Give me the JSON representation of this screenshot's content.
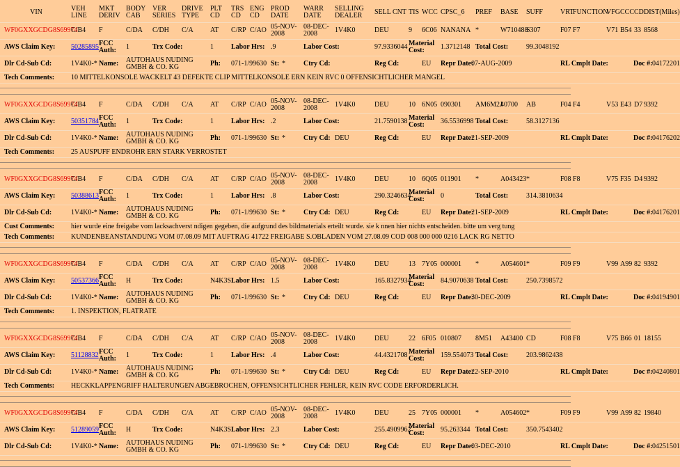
{
  "header": [
    "VIN",
    "VEH LINE",
    "MKT DERIV",
    "BODY CAB",
    "VER SERIES",
    "DRIVE TYPE",
    "PLT CD",
    "TRS CD",
    "ENG CD",
    "PROD DATE",
    "WARR DATE",
    "SELLING DEALER",
    "SELL CNT",
    "TIS",
    "WCC",
    "CPSC_6",
    "PREF",
    "BASE",
    "SUFF",
    "VRT",
    "FUNCTION",
    "VFG",
    "CCC",
    "CD",
    "DIST(Miles)"
  ],
  "labels": {
    "aws_claim_key": "AWS Claim Key:",
    "fcc_auth": "FCC Auth:",
    "trx_code": "Trx Code:",
    "labor_hrs": "Labor Hrs:",
    "labor_cost": "Labor Cost:",
    "material_cost": "Material Cost:",
    "total_cost": "Total Cost:",
    "dlr_cd": "Dlr Cd-Sub Cd:",
    "name": "Name:",
    "ph": "Ph:",
    "st": "St:",
    "ctry_cd": "Ctry Cd:",
    "reg_cd": "Reg Cd:",
    "repr_date": "Repr Date:",
    "rl_cmplt_date": "RL Cmplt Date:",
    "doc_no": "Doc #:"
  },
  "records": [
    {
      "row1": [
        "WF0GXXGCDG8S69974",
        "C/B4",
        "F",
        "C/DA",
        "C/DH",
        "C/A",
        "AT",
        "C/RP",
        "C/AO",
        "05-NOV-2008",
        "08-DEC-2008",
        "1V4K0",
        "DEU",
        "9",
        "6C06",
        "NANANA",
        "*",
        "W710488",
        "S307",
        "F07",
        "F7",
        "V71",
        "B54",
        "33",
        "8568"
      ],
      "row2": {
        "claim_key": "50285895",
        "fcc_auth": "1",
        "trx_code": "1",
        "labor_hrs": ".9",
        "labor_cost": "97.9336044",
        "material_cost": "1.3712148",
        "total_cost": "99.3048192"
      },
      "row3": {
        "dlr_cd": "1V4K0-*",
        "name": "AUTOHAUS NUDING GMBH & CO. KG",
        "phone": "071-1/99630",
        "st": "*",
        "region": "EU",
        "repr_date": "07-AUG-2009",
        "doc_no": "04172201"
      },
      "comments": [
        {
          "label": "Tech Comments:",
          "text": "10 MITTELKONSOLE WACKELT 43 DEFEKTE CLIP MITTELKONSOLE ERN KEIN RVC 0 OFFENSICHTLICHER MANGEL"
        }
      ]
    },
    {
      "row1": [
        "WF0GXXGCDG8S69974",
        "C/B4",
        "F",
        "C/DA",
        "C/DH",
        "C/A",
        "AT",
        "C/RP",
        "C/AO",
        "05-NOV-2008",
        "08-DEC-2008",
        "1V4K0",
        "DEU",
        "10",
        "6N05",
        "090301",
        "AM6M2J",
        "40700",
        "AB",
        "F04",
        "F4",
        "V53",
        "E43",
        "D7",
        "9392"
      ],
      "row2": {
        "claim_key": "50351784",
        "fcc_auth": "1",
        "trx_code": "1",
        "labor_hrs": ".2",
        "labor_cost": "21.7590138",
        "material_cost": "36.5536998",
        "total_cost": "58.3127136"
      },
      "row3": {
        "dlr_cd": "1V4K0-*",
        "name": "AUTOHAUS NUDING GMBH & CO. KG",
        "phone": "071-1/99630",
        "st": "*",
        "ctry_cd": "DEU",
        "region": "EU",
        "repr_date": "21-SEP-2009",
        "doc_no": "04176202"
      },
      "comments": [
        {
          "label": "Tech Comments:",
          "text": "25 AUSPUFF ENDROHR ERN STARK VERROSTET"
        }
      ]
    },
    {
      "row1": [
        "WF0GXXGCDG8S69974",
        "C/B4",
        "F",
        "C/DA",
        "C/DH",
        "C/A",
        "AT",
        "C/RP",
        "C/AO",
        "05-NOV-2008",
        "08-DEC-2008",
        "1V4K0",
        "DEU",
        "10",
        "6Q05",
        "011901",
        "*",
        "A043423",
        "*",
        "F08",
        "F8",
        "V75",
        "F35",
        "D4",
        "9392"
      ],
      "row2": {
        "claim_key": "50388613",
        "fcc_auth": "1",
        "trx_code": "1",
        "labor_hrs": ".8",
        "labor_cost": "290.3246634",
        "material_cost": "0",
        "total_cost": "314.3810634"
      },
      "row3": {
        "dlr_cd": "1V4K0-*",
        "name": "AUTOHAUS NUDING GMBH & CO. KG",
        "phone": "071-1/99630",
        "st": "*",
        "ctry_cd": "DEU",
        "region": "EU",
        "repr_date": "21-SEP-2009",
        "doc_no": "04176201"
      },
      "comments": [
        {
          "label": "Cust Comments:",
          "text": "hier wurde eine freigabe vom lacksachverst ndigen gegeben, die aufgrund des bildmaterials erteilt wurde. sie k nnen hier nichts entscheiden. bitte um verg tung"
        },
        {
          "label": "Tech Comments:",
          "text": "KUNDENBEANSTANDUNG VOM 07.08.09 MIT AUFTRAG 41722 FREIGABE S.OBLADEN VOM 27.08.09 COD 008 000 000 0216 LACK RG NETTO"
        }
      ]
    },
    {
      "row1": [
        "WF0GXXGCDG8S69974",
        "C/B4",
        "F",
        "C/DA",
        "C/DH",
        "C/A",
        "AT",
        "C/RP",
        "C/AO",
        "05-NOV-2008",
        "08-DEC-2008",
        "1V4K0",
        "DEU",
        "13",
        "7Y05",
        "000001",
        "*",
        "A054601",
        "*",
        "F09",
        "F9",
        "V99",
        "A99",
        "82",
        "9392"
      ],
      "row2": {
        "claim_key": "50537366",
        "fcc_auth": "H",
        "trx_code": "N4K3S",
        "labor_hrs": "1.5",
        "labor_cost": "165.8327934",
        "material_cost": "84.9070638",
        "total_cost": "250.7398572"
      },
      "row3": {
        "dlr_cd": "1V4K0-*",
        "name": "AUTOHAUS NUDING GMBH & CO. KG",
        "phone": "071-1/99630",
        "st": "*",
        "ctry_cd": "DEU",
        "region": "EU",
        "repr_date": "30-DEC-2009",
        "doc_no": "04194901"
      },
      "comments": [
        {
          "label": "Tech Comments:",
          "text": "1. INSPEKTION, FLATRATE"
        }
      ]
    },
    {
      "row1": [
        "WF0GXXGCDG8S69974",
        "C/B4",
        "F",
        "C/DA",
        "C/DH",
        "C/A",
        "AT",
        "C/RP",
        "C/AO",
        "05-NOV-2008",
        "08-DEC-2008",
        "1V4K0",
        "DEU",
        "22",
        "6F05",
        "010807",
        "8M51",
        "A43400",
        "CD",
        "F08",
        "F8",
        "V75",
        "B66",
        "01",
        "18155"
      ],
      "row2": {
        "claim_key": "51128832",
        "fcc_auth": "1",
        "trx_code": "1",
        "labor_hrs": ".4",
        "labor_cost": "44.4321708",
        "material_cost": "159.554073",
        "total_cost": "203.9862438"
      },
      "row3": {
        "dlr_cd": "1V4K0-*",
        "name": "AUTOHAUS NUDING GMBH & CO. KG",
        "phone": "071-1/99630",
        "st": "*",
        "ctry_cd": "DEU",
        "region": "EU",
        "repr_date": "22-SEP-2010",
        "doc_no": "04240801"
      },
      "comments": [
        {
          "label": "Tech Comments:",
          "text": "HECKKLAPPENGRIFF HALTERUNGEN ABGEBROCHEN, OFFENSICHTLICHER FEHLER, KEIN RVC CODE ERFORDERLICH."
        }
      ]
    },
    {
      "row1": [
        "WF0GXXGCDG8S69974",
        "C/B4",
        "F",
        "C/DA",
        "C/DH",
        "C/A",
        "AT",
        "C/RP",
        "C/AO",
        "05-NOV-2008",
        "08-DEC-2008",
        "1V4K0",
        "DEU",
        "25",
        "7Y05",
        "000001",
        "*",
        "A054602",
        "*",
        "F09",
        "F9",
        "V99",
        "A99",
        "82",
        "19840"
      ],
      "row2": {
        "claim_key": "51289059",
        "fcc_auth": "H",
        "trx_code": "N4K3S",
        "labor_hrs": "2.3",
        "labor_cost": "255.4909962",
        "material_cost": "95.263344",
        "total_cost": "350.7543402"
      },
      "row3": {
        "dlr_cd": "1V4K0-*",
        "name": "AUTOHAUS NUDING GMBH & CO. KG",
        "phone": "071-1/99630",
        "st": "*",
        "ctry_cd": "DEU",
        "region": "EU",
        "repr_date": "03-DEC-2010",
        "doc_no": "04251501"
      },
      "comments": []
    }
  ]
}
